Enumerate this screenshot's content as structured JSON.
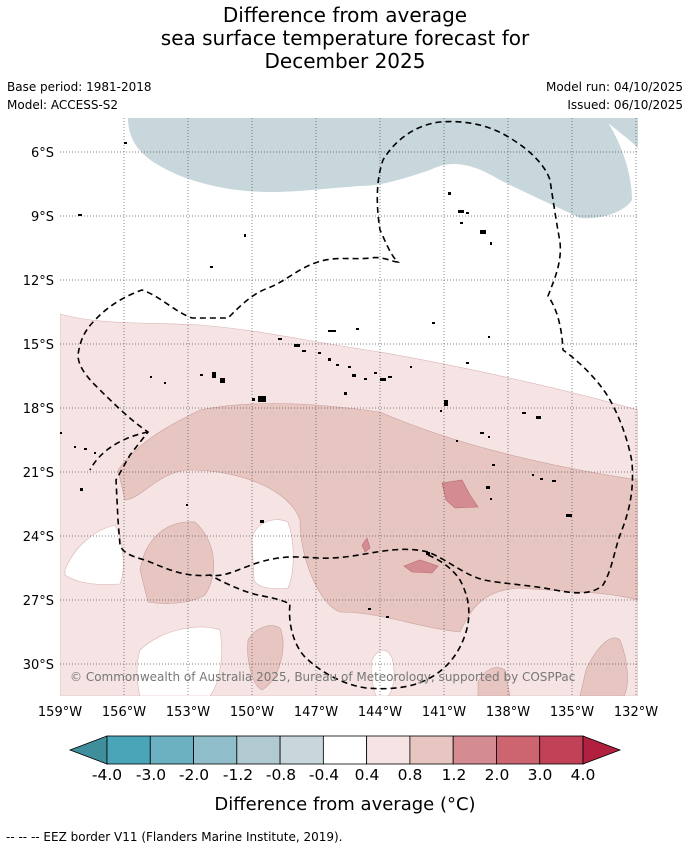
{
  "title": {
    "line1": "Difference from average",
    "line2": "sea surface temperature forecast for",
    "line3": "December 2025"
  },
  "meta": {
    "base_period": "Base period: 1981-2018",
    "model": "Model: ACCESS-S2",
    "model_run": "Model run: 04/10/2025",
    "issued": "Issued: 06/10/2025"
  },
  "map": {
    "lat_labels": [
      "6°S",
      "9°S",
      "12°S",
      "15°S",
      "18°S",
      "21°S",
      "24°S",
      "27°S",
      "30°S"
    ],
    "lon_labels": [
      "159°W",
      "156°W",
      "153°W",
      "150°W",
      "147°W",
      "144°W",
      "141°W",
      "138°W",
      "135°W",
      "132°W"
    ],
    "copyright": "© Commonwealth of Australia 2025, Bureau of Meteorology, supported by COSPPac"
  },
  "colorbar": {
    "colors": [
      "#3f8e9b",
      "#4aa5b8",
      "#6cb1c1",
      "#8fbdc9",
      "#b1c9d0",
      "#c7d7db",
      "#ffffff",
      "#f5e4e3",
      "#e7c5c1",
      "#d48c92",
      "#cd6570",
      "#c14256",
      "#b1203f"
    ],
    "labels": [
      "-4.0",
      "-3.0",
      "-2.0",
      "-1.2",
      "-0.8",
      "-0.4",
      "0.4",
      "0.8",
      "1.2",
      "2.0",
      "3.0",
      "4.0"
    ],
    "title": "Difference from average (°C)"
  },
  "legend": {
    "eez": "--  --  -- EEZ border V11 (Flanders Marine Institute, 2019)."
  }
}
